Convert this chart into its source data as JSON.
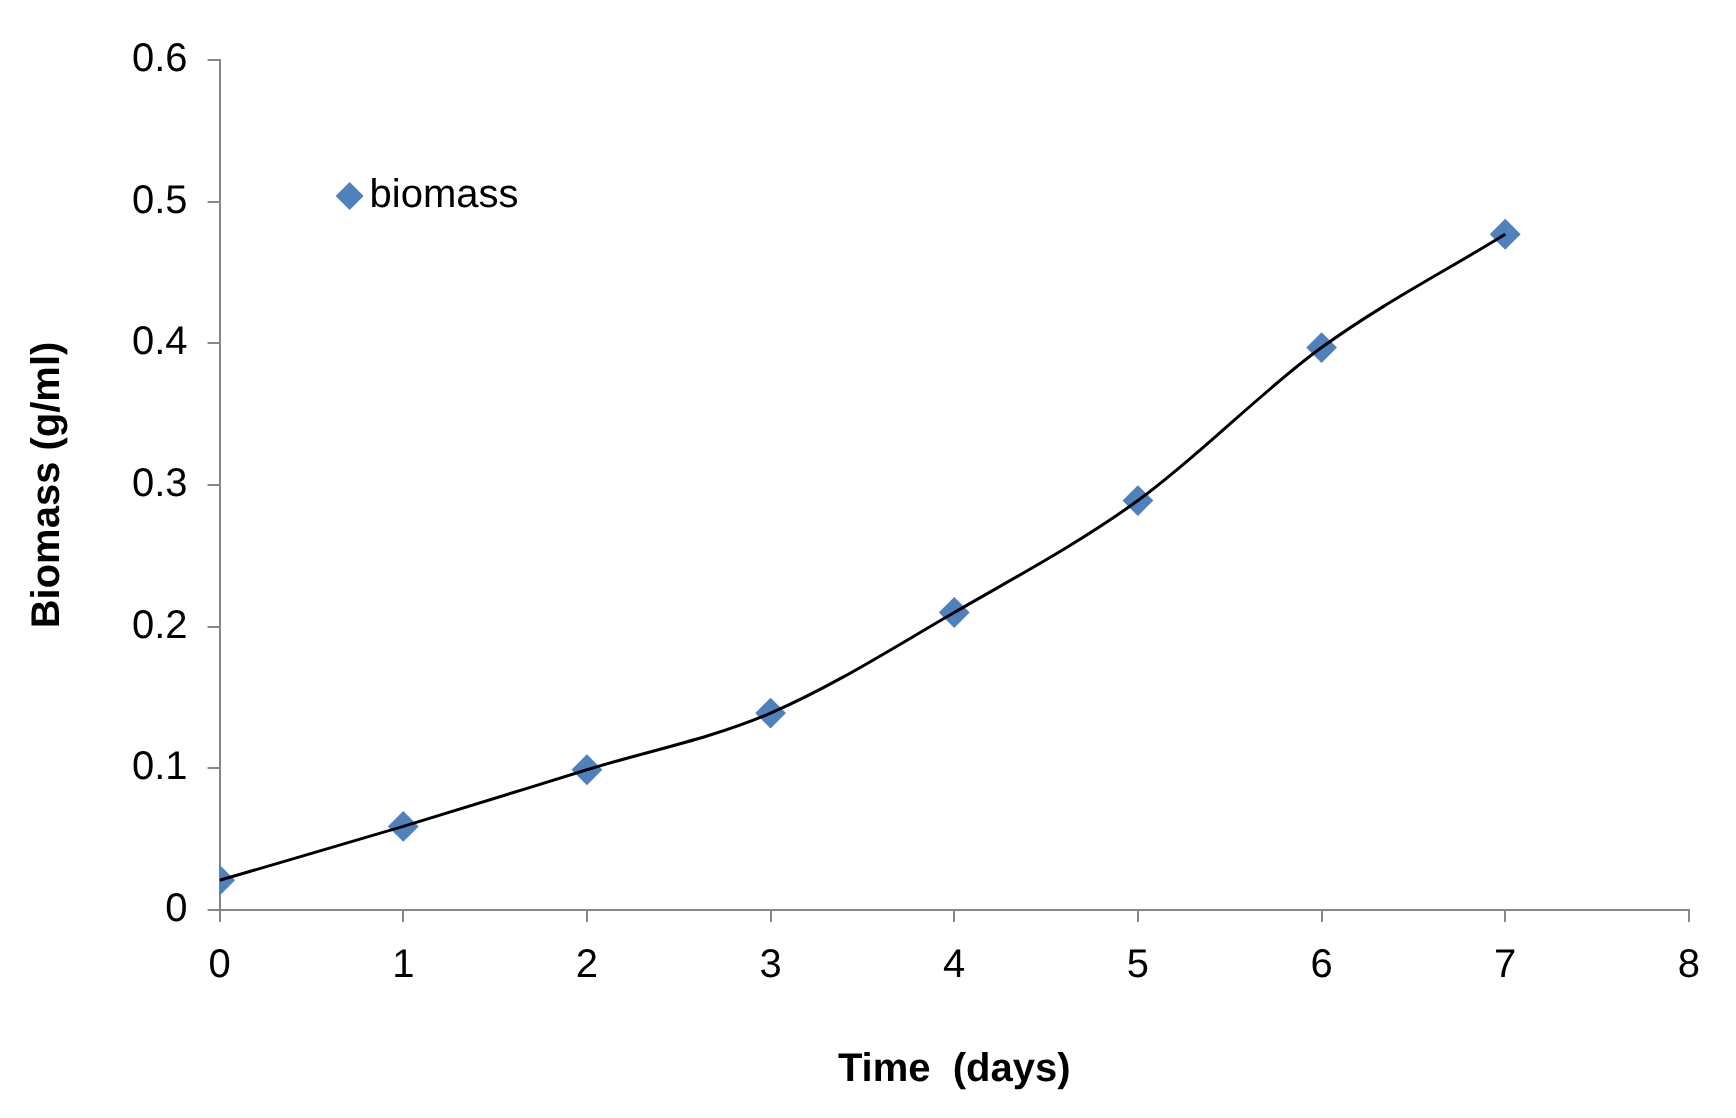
{
  "chart_data": {
    "type": "scatter",
    "xlabel": "Time  (days)",
    "ylabel": "Biomass (g/ml)",
    "xlim": [
      0,
      8
    ],
    "xticks": [
      0,
      1,
      2,
      3,
      4,
      5,
      6,
      7,
      8
    ],
    "ylim": [
      0,
      0.6
    ],
    "yticks": [
      0,
      0.1,
      0.2,
      0.3,
      0.4,
      0.5,
      0.6
    ],
    "grid": false,
    "legend": "top left",
    "marker": "diamond",
    "series": [
      {
        "name": "biomass",
        "color": "#4f81bd",
        "x": [
          0,
          1,
          2,
          3,
          4,
          5,
          6,
          7
        ],
        "values": [
          0.021,
          0.059,
          0.099,
          0.139,
          0.21,
          0.289,
          0.397,
          0.477
        ]
      },
      {
        "type": "line",
        "color": "#000000",
        "marker": "none",
        "x": [
          0,
          1,
          2,
          3,
          4,
          5,
          6,
          7
        ],
        "values": [
          0.021,
          0.059,
          0.099,
          0.139,
          0.21,
          0.289,
          0.397,
          0.477
        ]
      }
    ]
  }
}
